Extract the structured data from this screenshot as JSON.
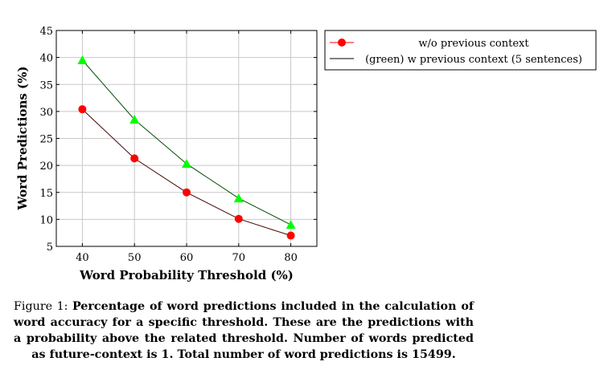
{
  "chart_data": {
    "type": "line",
    "x": [
      40,
      50,
      60,
      70,
      80
    ],
    "series": [
      {
        "name": "w/o previous context",
        "values": [
          30.4,
          21.3,
          15.0,
          10.1,
          7.0
        ],
        "line_color": "#4a0000",
        "marker": "circle",
        "marker_color": "#ff0000"
      },
      {
        "name": "(green) w previous context (5 sentences)",
        "values": [
          39.5,
          28.5,
          20.3,
          13.9,
          9.0
        ],
        "line_color": "#004d00",
        "marker": "triangle",
        "marker_color": "#00ff00"
      }
    ],
    "xlabel": "Word Probability Threshold (%)",
    "ylabel": "Word Predictions (%)",
    "xticks": [
      40,
      50,
      60,
      70,
      80
    ],
    "yticks": [
      5,
      10,
      15,
      20,
      25,
      30,
      35,
      40,
      45
    ],
    "xlim": [
      35,
      85
    ],
    "ylim": [
      5,
      45
    ],
    "grid": true,
    "legend_placement": "outside-top-right"
  },
  "caption": {
    "label": "Figure 1:",
    "text": "Percentage of word predictions included in the calculation of word accuracy for a specific threshold. These are the predictions with a probability above the related threshold. Number of words predicted as future-context is 1. Total number of word predictions is 15499."
  }
}
